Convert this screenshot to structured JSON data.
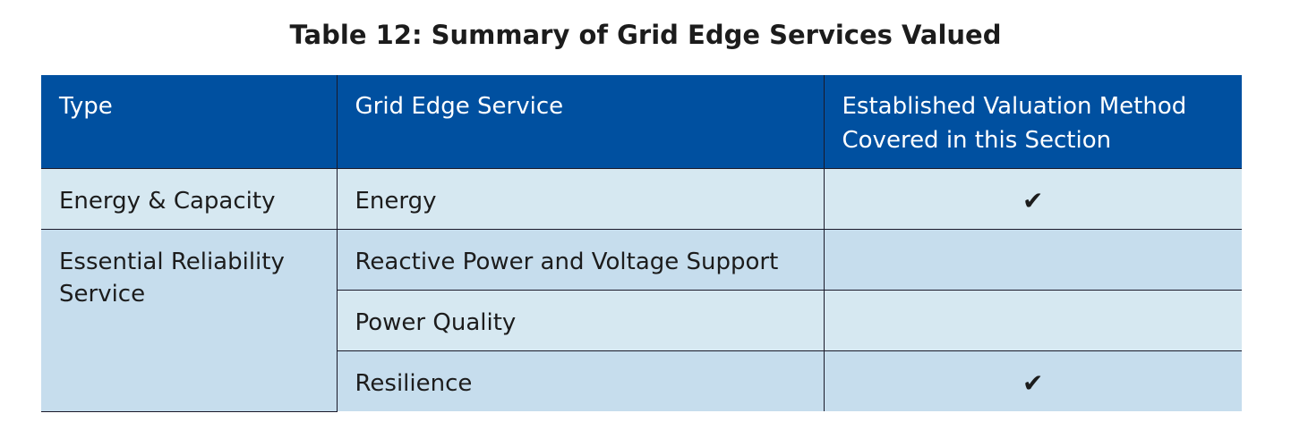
{
  "title": "Table 12: Summary of Grid Edge Services Valued",
  "table": {
    "header": [
      "Type",
      "Grid Edge Service",
      "Established Valuation Method Covered in this Section"
    ],
    "groups": [
      {
        "type": "Energy & Capacity",
        "services": [
          {
            "name": "Energy",
            "method": "✔"
          }
        ]
      },
      {
        "type": "Essential Reliability Service",
        "services": [
          {
            "name": "Reactive Power and Voltage Support"
          },
          {
            "name": "Power Quality"
          },
          {
            "name": "Resilience",
            "method": "✔"
          }
        ]
      }
    ]
  }
}
